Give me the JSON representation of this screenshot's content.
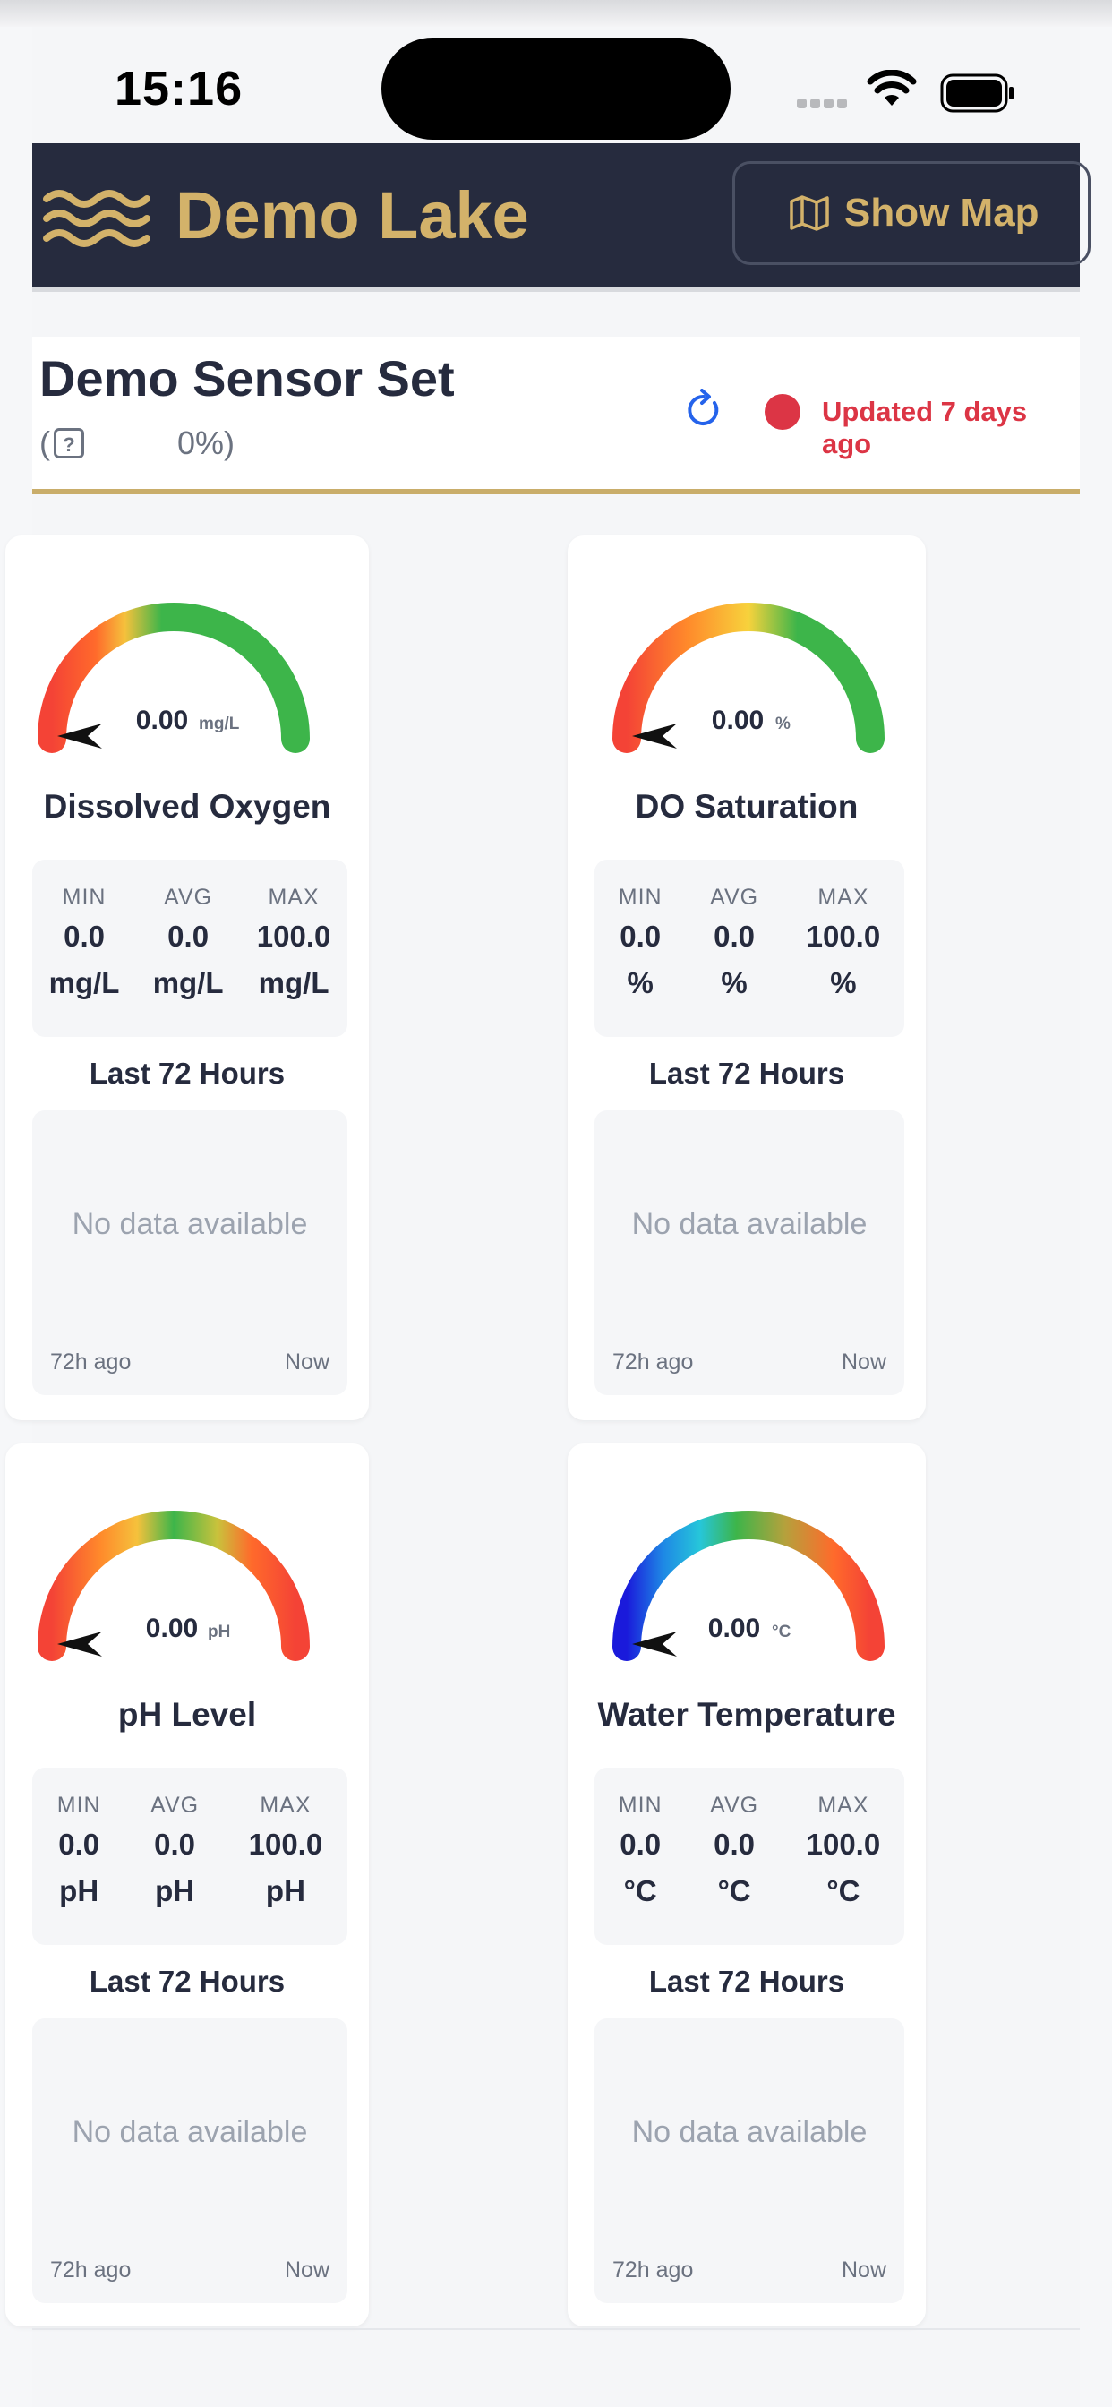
{
  "status": {
    "time": "15:16"
  },
  "header": {
    "title": "Demo Lake",
    "map_button": "Show Map"
  },
  "sensor_set": {
    "title": "Demo Sensor Set",
    "sub_open": "(",
    "sub_pct": "0%)",
    "updated": "Updated 7 days ago",
    "status_color": "#dc3545"
  },
  "labels": {
    "min": "MIN",
    "avg": "AVG",
    "max": "MAX",
    "hours": "Last 72 Hours",
    "no_data": "No data available",
    "ago": "72h ago",
    "now": "Now"
  },
  "sensors": [
    {
      "name": "Dissolved Oxygen",
      "gauge_value": "0.00",
      "gauge_unit": "mg/L",
      "min": "0.0",
      "avg": "0.0",
      "max": "100.0",
      "unit": "mg/L",
      "level": 0
    },
    {
      "name": "DO Saturation",
      "gauge_value": "0.00",
      "gauge_unit": "%",
      "min": "0.0",
      "avg": "0.0",
      "max": "100.0",
      "unit": "%",
      "level": 0
    },
    {
      "name": "pH Level",
      "gauge_value": "0.00",
      "gauge_unit": "pH",
      "min": "0.0",
      "avg": "0.0",
      "max": "100.0",
      "unit": "pH",
      "level": 0
    },
    {
      "name": "Water Temperature",
      "gauge_value": "0.00",
      "gauge_unit": "°C",
      "min": "0.0",
      "avg": "0.0",
      "max": "100.0",
      "unit": "°C",
      "level": 0
    }
  ],
  "colors": {
    "brand_navy": "#262b3e",
    "brand_gold": "#d3b26a",
    "accent_blue": "#2563eb"
  }
}
